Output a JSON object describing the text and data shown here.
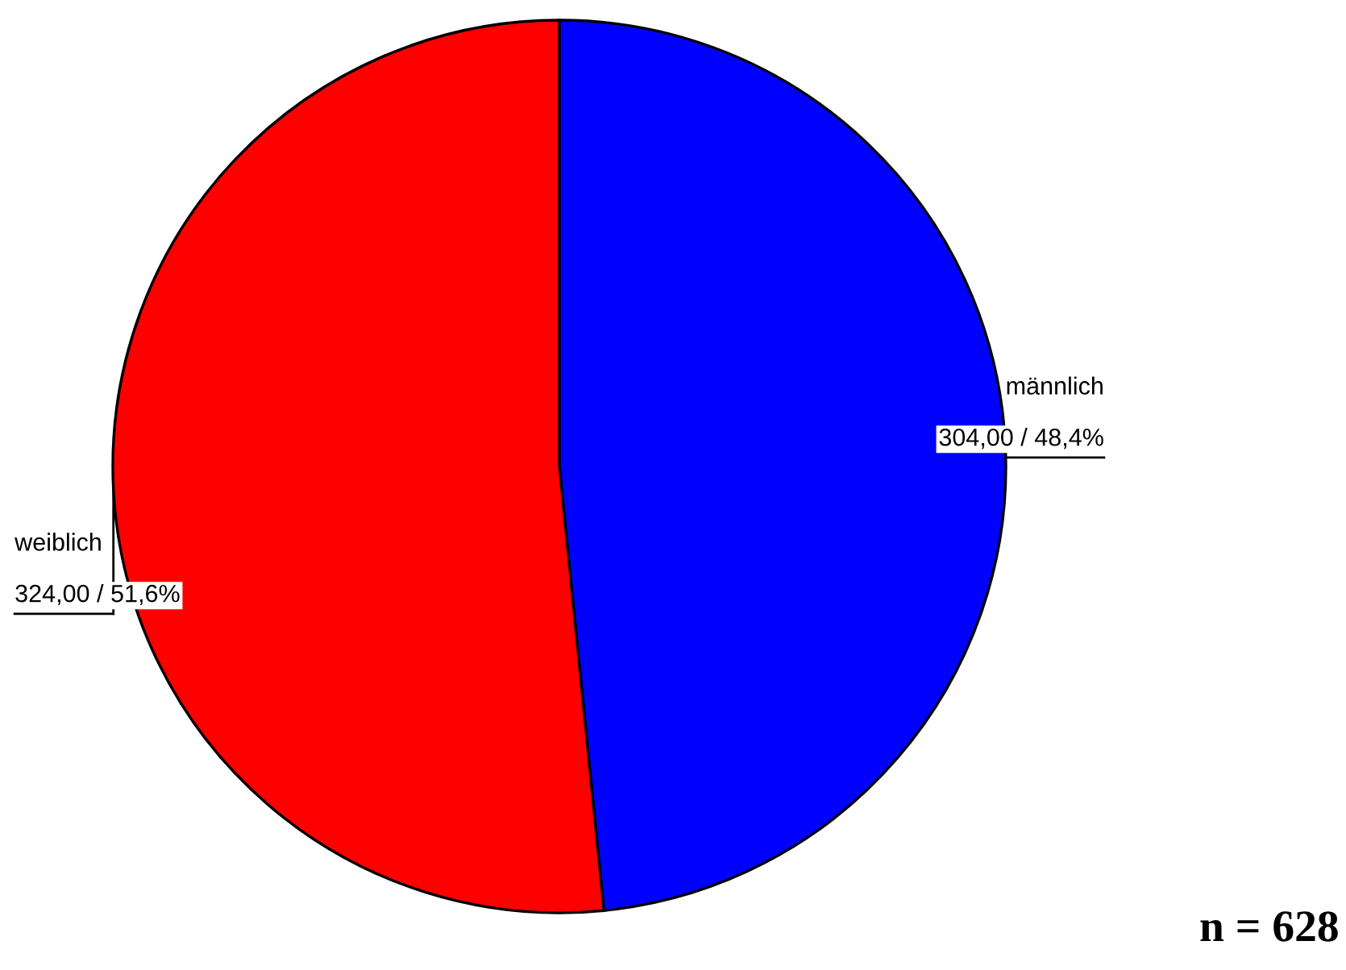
{
  "chart_data": {
    "type": "pie",
    "categories": [
      "männlich",
      "weiblich"
    ],
    "values": [
      304,
      324
    ],
    "colors": [
      "#0000ff",
      "#ff0000"
    ],
    "value_labels": [
      "304,00 / 48,4%",
      "324,00 / 51,6%"
    ],
    "annotations": [
      "n = 628"
    ]
  }
}
